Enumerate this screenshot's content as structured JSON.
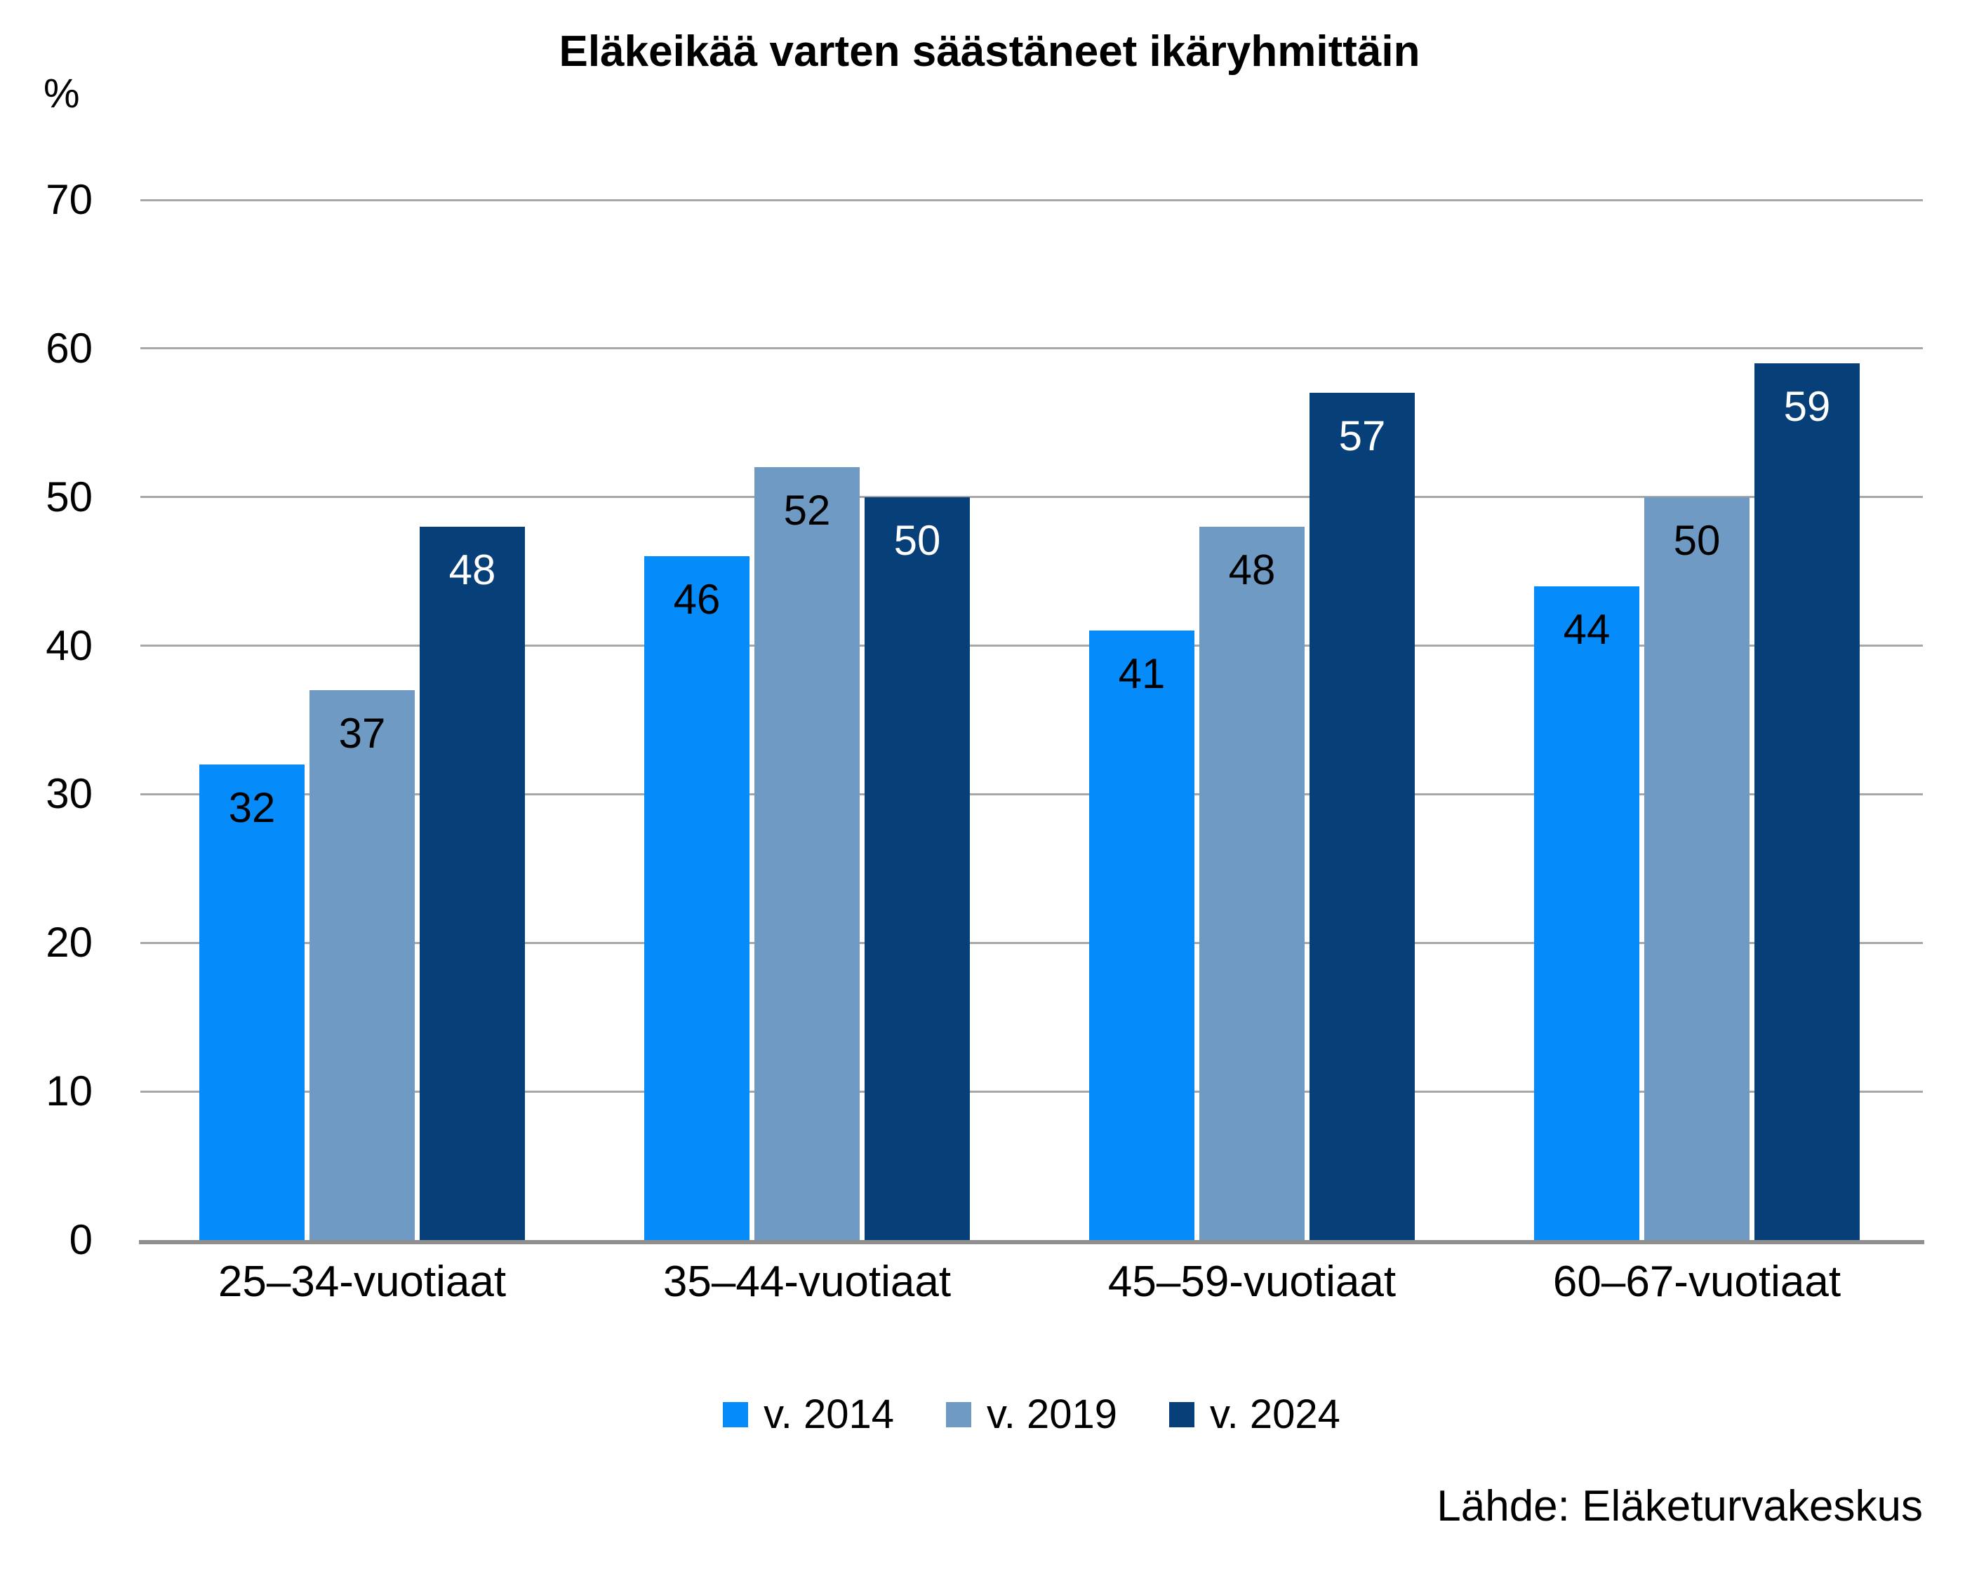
{
  "chart_data": {
    "type": "bar",
    "title": "Eläkeikää varten säästäneet ikäryhmittäin",
    "y_unit_label": "%",
    "xlabel": "",
    "ylabel": "",
    "categories": [
      "25–34-vuotiaat",
      "35–44-vuotiaat",
      "45–59-vuotiaat",
      "60–67-vuotiaat"
    ],
    "series": [
      {
        "name": "v. 2014",
        "color": "#068CFA",
        "label_color": "#000000",
        "values": [
          32,
          46,
          41,
          44
        ]
      },
      {
        "name": "v. 2019",
        "color": "#6E9AC3",
        "label_color": "#000000",
        "values": [
          37,
          52,
          48,
          50
        ]
      },
      {
        "name": "v. 2024",
        "color": "#074078",
        "label_color": "#FFFFFF",
        "values": [
          48,
          50,
          57,
          59
        ]
      }
    ],
    "ylim": [
      0,
      70
    ],
    "yticks": [
      0,
      10,
      20,
      30,
      40,
      50,
      60,
      70
    ],
    "grid": true,
    "gridline_color": "#A7A7A7",
    "axis_line_color": "#8F8F8F",
    "legend_position": "bottom",
    "source": "Lähde: Eläketurvakeskus"
  }
}
